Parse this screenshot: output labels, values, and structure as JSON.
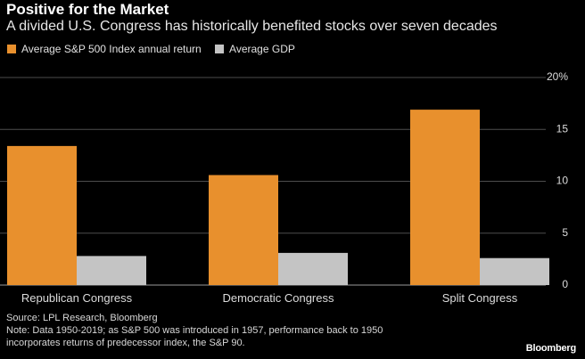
{
  "header": {
    "title": "Positive for the Market",
    "subtitle": "A divided U.S. Congress has historically benefited stocks over seven decades"
  },
  "legend": [
    {
      "label": "Average S&P 500 Index annual return",
      "color": "#e8902d"
    },
    {
      "label": "Average GDP",
      "color": "#c4c4c4"
    }
  ],
  "chart_data": {
    "type": "bar",
    "title": "Positive for the Market",
    "subtitle": "A divided U.S. Congress has historically benefited stocks over seven decades",
    "categories": [
      "Republican Congress",
      "Democratic Congress",
      "Split Congress"
    ],
    "series": [
      {
        "name": "Average S&P 500 Index annual return",
        "color": "#e8902d",
        "values": [
          13.4,
          10.6,
          16.9
        ]
      },
      {
        "name": "Average GDP",
        "color": "#c4c4c4",
        "values": [
          2.8,
          3.1,
          2.6
        ]
      }
    ],
    "ylim": [
      0,
      20
    ],
    "yticks": [
      0,
      5,
      10,
      15,
      20
    ],
    "ytick_labels": [
      "0",
      "5",
      "10",
      "15",
      "20%"
    ],
    "y_axis_position": "right",
    "grid": true,
    "legend_position": "top-left"
  },
  "footer": {
    "source": "Source: LPL Research, Bloomberg",
    "note_line1": "Note: Data 1950-2019; as S&P 500 was introduced in 1957, performance back to 1950",
    "note_line2": "incorporates returns of predecessor index, the S&P 90.",
    "brand": "Bloomberg"
  }
}
